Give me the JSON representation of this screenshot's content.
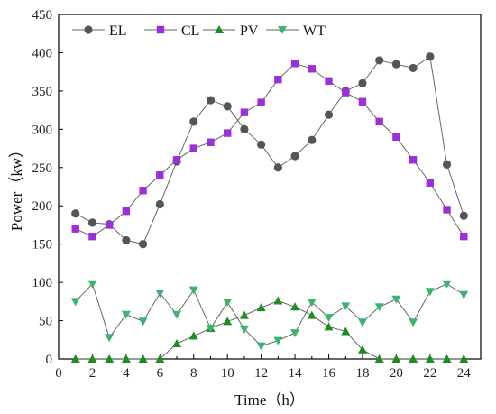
{
  "chart_data": {
    "type": "line",
    "xlabel": "Time（h）",
    "ylabel": "Power（kw）",
    "xlim": [
      0,
      25
    ],
    "ylim": [
      0,
      450
    ],
    "xticks": [
      0,
      2,
      4,
      6,
      8,
      10,
      12,
      14,
      16,
      18,
      20,
      22,
      24
    ],
    "yticks": [
      0,
      50,
      100,
      150,
      200,
      250,
      300,
      350,
      400,
      450
    ],
    "grid": false,
    "legend_position": "top-left",
    "x": [
      1,
      2,
      3,
      4,
      5,
      6,
      7,
      8,
      9,
      10,
      11,
      12,
      13,
      14,
      15,
      16,
      17,
      18,
      19,
      20,
      21,
      22,
      23,
      24
    ],
    "series": [
      {
        "name": "EL",
        "color": "#555555",
        "marker": "circle",
        "values": [
          190,
          178,
          176,
          155,
          150,
          202,
          258,
          310,
          338,
          330,
          300,
          280,
          250,
          265,
          286,
          319,
          350,
          360,
          390,
          385,
          380,
          395,
          254,
          187
        ]
      },
      {
        "name": "CL",
        "color": "#9B30D9",
        "marker": "square",
        "values": [
          170,
          160,
          175,
          193,
          220,
          240,
          260,
          275,
          283,
          295,
          322,
          335,
          365,
          386,
          379,
          363,
          348,
          336,
          310,
          290,
          260,
          230,
          195,
          160
        ]
      },
      {
        "name": "PV",
        "color": "#1E8C1E",
        "marker": "triangle-up",
        "values": [
          0,
          0,
          0,
          0,
          0,
          0,
          20,
          30,
          40,
          49,
          57,
          67,
          76,
          68,
          57,
          42,
          36,
          12,
          0,
          0,
          0,
          0,
          0,
          0
        ]
      },
      {
        "name": "WT",
        "color": "#3CB371",
        "marker": "triangle-down",
        "values": [
          75,
          98,
          28,
          58,
          49,
          86,
          58,
          90,
          40,
          74,
          39,
          17,
          24,
          34,
          74,
          54,
          69,
          48,
          68,
          78,
          48,
          88,
          98,
          84
        ]
      }
    ]
  }
}
